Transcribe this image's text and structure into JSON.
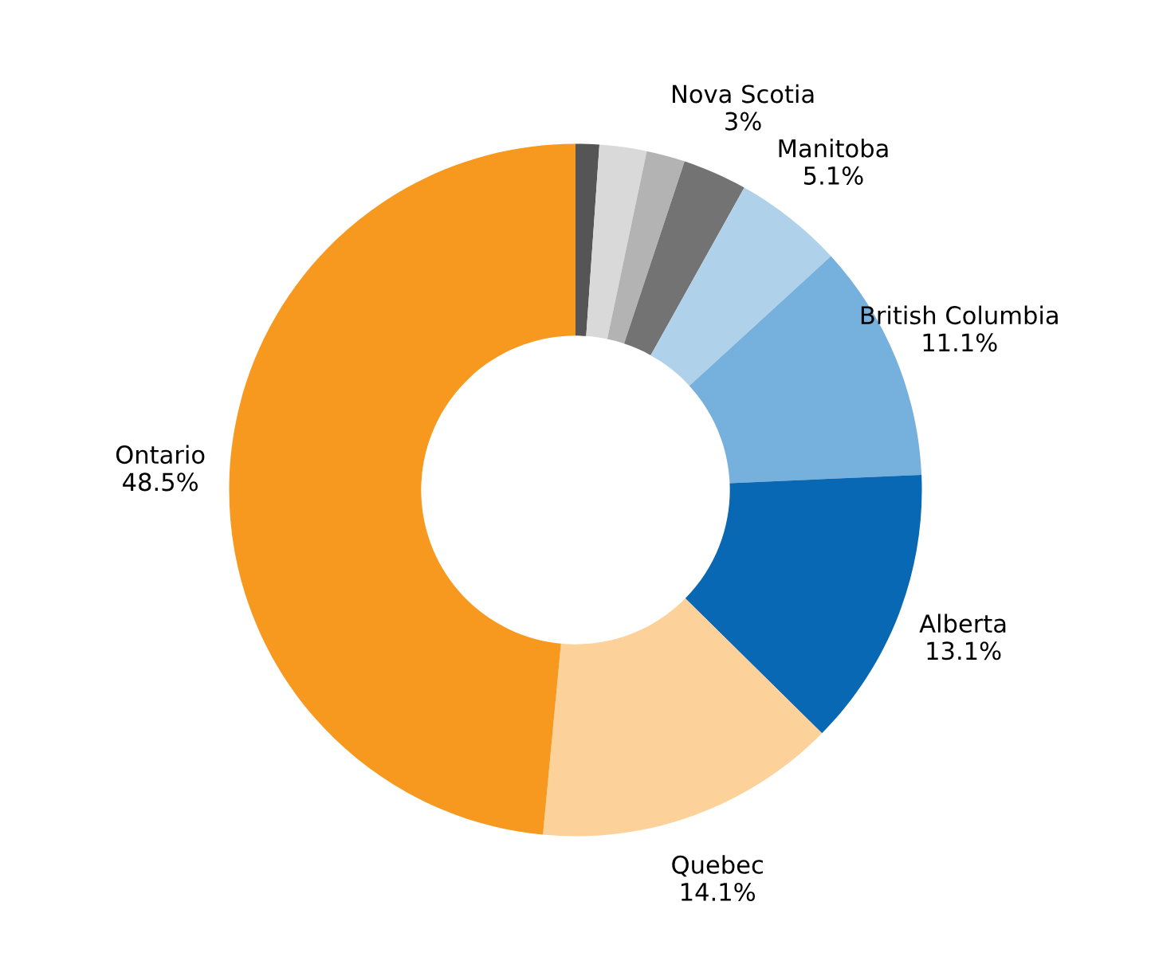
{
  "chart_data": {
    "type": "donut",
    "categories": [
      null,
      null,
      null,
      "Nova Scotia",
      "Manitoba",
      "British Columbia",
      "Alberta",
      "Quebec",
      "Ontario"
    ],
    "values": [
      1.1,
      2.2,
      1.8,
      3,
      5.1,
      11.1,
      13.1,
      14.1,
      48.5
    ],
    "value_labels": [
      null,
      null,
      null,
      "3%",
      "5.1%",
      "11.1%",
      "13.1%",
      "14.1%",
      "48.5%"
    ],
    "colors": [
      "#555555",
      "#d9d9d9",
      "#b3b3b3",
      "#737373",
      "#b0d1ea",
      "#76b0dc",
      "#0868b4",
      "#fdd19a",
      "#f7991f"
    ],
    "legend": false
  }
}
